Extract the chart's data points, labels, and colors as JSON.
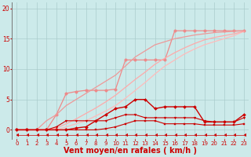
{
  "background_color": "#cceaea",
  "grid_color": "#aacccc",
  "xlabel": "Vent moyen/en rafales ( km/h )",
  "xlabel_color": "#cc0000",
  "xlabel_fontsize": 7,
  "xtick_color": "#cc0000",
  "ytick_color": "#cc0000",
  "xlim": [
    -0.5,
    23.5
  ],
  "ylim": [
    -1.5,
    21
  ],
  "yticks": [
    0,
    5,
    10,
    15,
    20
  ],
  "xticks": [
    0,
    1,
    2,
    3,
    4,
    5,
    6,
    7,
    8,
    9,
    10,
    11,
    12,
    13,
    14,
    15,
    16,
    17,
    18,
    19,
    20,
    21,
    22,
    23
  ],
  "series": [
    {
      "x": [
        0,
        1,
        2,
        3,
        4,
        5,
        6,
        7,
        8,
        9,
        10,
        11,
        12,
        13,
        14,
        15,
        16,
        17,
        18,
        19,
        20,
        21,
        22,
        23
      ],
      "y": [
        0,
        0,
        0,
        0,
        2.5,
        6,
        6.3,
        6.5,
        6.5,
        6.5,
        6.7,
        11.5,
        11.5,
        11.5,
        11.5,
        11.5,
        16.3,
        16.3,
        16.3,
        16.3,
        16.3,
        16.3,
        16.3,
        16.3
      ],
      "color": "#ee8888",
      "linewidth": 0.9,
      "marker": "o",
      "markersize": 2.5
    },
    {
      "x": [
        0,
        1,
        2,
        3,
        4,
        5,
        6,
        7,
        8,
        9,
        10,
        11,
        12,
        13,
        14,
        15,
        16,
        17,
        18,
        19,
        20,
        21,
        22,
        23
      ],
      "y": [
        0,
        0,
        0,
        0,
        0,
        0.5,
        1.0,
        1.5,
        2.3,
        3.1,
        4.0,
        5.2,
        6.5,
        7.8,
        9.2,
        10.5,
        11.5,
        12.5,
        13.3,
        14.0,
        14.5,
        15.0,
        15.5,
        16.2
      ],
      "color": "#ffbbbb",
      "linewidth": 0.9,
      "marker": null,
      "markersize": 0
    },
    {
      "x": [
        0,
        1,
        2,
        3,
        4,
        5,
        6,
        7,
        8,
        9,
        10,
        11,
        12,
        13,
        14,
        15,
        16,
        17,
        18,
        19,
        20,
        21,
        22,
        23
      ],
      "y": [
        0,
        0,
        0,
        0,
        0.3,
        1.0,
        1.8,
        2.7,
        3.6,
        4.6,
        5.7,
        7.0,
        8.3,
        9.5,
        10.8,
        11.8,
        12.7,
        13.5,
        14.2,
        14.8,
        15.2,
        15.5,
        15.8,
        16.2
      ],
      "color": "#ffaaaa",
      "linewidth": 0.9,
      "marker": null,
      "markersize": 0
    },
    {
      "x": [
        0,
        1,
        2,
        3,
        4,
        5,
        6,
        7,
        8,
        9,
        10,
        11,
        12,
        13,
        14,
        15,
        16,
        17,
        18,
        19,
        20,
        21,
        22,
        23
      ],
      "y": [
        0,
        0,
        0,
        1.5,
        2.5,
        4.0,
        5.0,
        6.0,
        7.0,
        8.0,
        9.0,
        10.5,
        12.0,
        13.0,
        14.0,
        14.5,
        15.0,
        15.3,
        15.6,
        15.8,
        16.0,
        16.1,
        16.2,
        16.3
      ],
      "color": "#ee9999",
      "linewidth": 0.9,
      "marker": null,
      "markersize": 0
    },
    {
      "x": [
        0,
        1,
        2,
        3,
        4,
        5,
        6,
        7,
        8,
        9,
        10,
        11,
        12,
        13,
        14,
        15,
        16,
        17,
        18,
        19,
        20,
        21,
        22,
        23
      ],
      "y": [
        0,
        0,
        0,
        0,
        0,
        0,
        0.3,
        0.5,
        1.5,
        2.5,
        3.5,
        3.8,
        5.0,
        5.0,
        3.5,
        3.8,
        3.8,
        3.8,
        3.8,
        1.3,
        1.3,
        1.3,
        1.3,
        2.5
      ],
      "color": "#cc0000",
      "linewidth": 1.0,
      "marker": "D",
      "markersize": 2.0
    },
    {
      "x": [
        0,
        1,
        2,
        3,
        4,
        5,
        6,
        7,
        8,
        9,
        10,
        11,
        12,
        13,
        14,
        15,
        16,
        17,
        18,
        19,
        20,
        21,
        22,
        23
      ],
      "y": [
        0,
        0,
        0,
        0,
        0.5,
        1.5,
        1.5,
        1.5,
        1.5,
        1.5,
        2.0,
        2.5,
        2.5,
        2.0,
        2.0,
        2.0,
        2.0,
        2.0,
        2.0,
        1.5,
        1.3,
        1.3,
        1.3,
        2.0
      ],
      "color": "#cc0000",
      "linewidth": 0.8,
      "marker": "v",
      "markersize": 2.0
    },
    {
      "x": [
        0,
        1,
        2,
        3,
        4,
        5,
        6,
        7,
        8,
        9,
        10,
        11,
        12,
        13,
        14,
        15,
        16,
        17,
        18,
        19,
        20,
        21,
        22,
        23
      ],
      "y": [
        0,
        0,
        0,
        0,
        0,
        0,
        0,
        0,
        0,
        0.2,
        0.5,
        1.0,
        1.5,
        1.5,
        1.5,
        1.0,
        1.0,
        1.0,
        1.0,
        0.8,
        0.8,
        0.8,
        0.8,
        1.0
      ],
      "color": "#cc0000",
      "linewidth": 0.8,
      "marker": "s",
      "markersize": 1.8
    },
    {
      "x": [
        0,
        1,
        2,
        3,
        4,
        5,
        6,
        7,
        8,
        9,
        10,
        11,
        12,
        13,
        14,
        15,
        16,
        17,
        18,
        19,
        20,
        21,
        22,
        23
      ],
      "y": [
        -0.8,
        -0.8,
        -0.8,
        -0.8,
        -0.8,
        -0.8,
        -0.8,
        -0.8,
        -0.8,
        -0.8,
        -0.8,
        -0.8,
        -0.8,
        -0.8,
        -0.8,
        -0.8,
        -0.8,
        -0.8,
        -0.8,
        -0.8,
        -0.8,
        -0.8,
        -0.8,
        -0.8
      ],
      "color": "#cc0000",
      "linewidth": 0.5,
      "marker": 4,
      "markersize": 2.5
    }
  ]
}
